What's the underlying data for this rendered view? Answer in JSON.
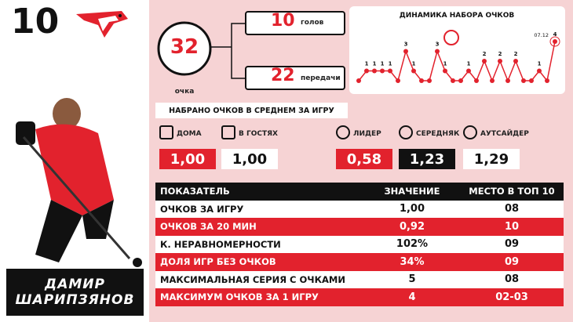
{
  "jersey_number": "10",
  "player_name": [
    "ДАМИР",
    "ШАРИПЗЯНОВ"
  ],
  "points": {
    "value": "32",
    "label": "очка"
  },
  "goals": {
    "value": "10",
    "label": "голов"
  },
  "assists": {
    "value": "22",
    "label": "передачи"
  },
  "chart": {
    "type": "line",
    "title": "ДИНАМИКА НАБОРА ОЧКОВ",
    "values": [
      0,
      1,
      1,
      1,
      1,
      0,
      3,
      1,
      0,
      0,
      3,
      1,
      0,
      0,
      1,
      0,
      2,
      0,
      2,
      0,
      2,
      0,
      0,
      1,
      0,
      4
    ],
    "ylim": [
      0,
      4
    ],
    "last_label": "07.12",
    "color": "#e2222d"
  },
  "average_title": "НАБРАНО ОЧКОВ В СРЕДНЕМ ЗА ИГРУ",
  "splits": [
    {
      "label": "ДОМА",
      "value": "1,00"
    },
    {
      "label": "В ГОСТЯХ",
      "value": "1,00"
    },
    {
      "label": "ЛИДЕР",
      "value": "0,58"
    },
    {
      "label": "СЕРЕДНЯК",
      "value": "1,23"
    },
    {
      "label": "АУТСАЙДЕР",
      "value": "1,29"
    }
  ],
  "table": {
    "header": [
      "ПОКАЗАТЕЛЬ",
      "ЗНАЧЕНИЕ",
      "МЕСТО В ТОП 10"
    ],
    "rows": [
      [
        "ОЧКОВ ЗА ИГРУ",
        "1,00",
        "08"
      ],
      [
        "ОЧКОВ ЗА 20 МИН",
        "0,92",
        "10"
      ],
      [
        "К. НЕРАВНОМЕРНОСТИ",
        "102%",
        "09"
      ],
      [
        "ДОЛЯ ИГР БЕЗ ОЧКОВ",
        "34%",
        "09"
      ],
      [
        "МАКСИМАЛЬНАЯ СЕРИЯ С ОЧКАМИ",
        "5",
        "08"
      ],
      [
        "МАКСИМУМ ОЧКОВ ЗА 1 ИГРУ",
        "4",
        "02-03"
      ]
    ]
  }
}
